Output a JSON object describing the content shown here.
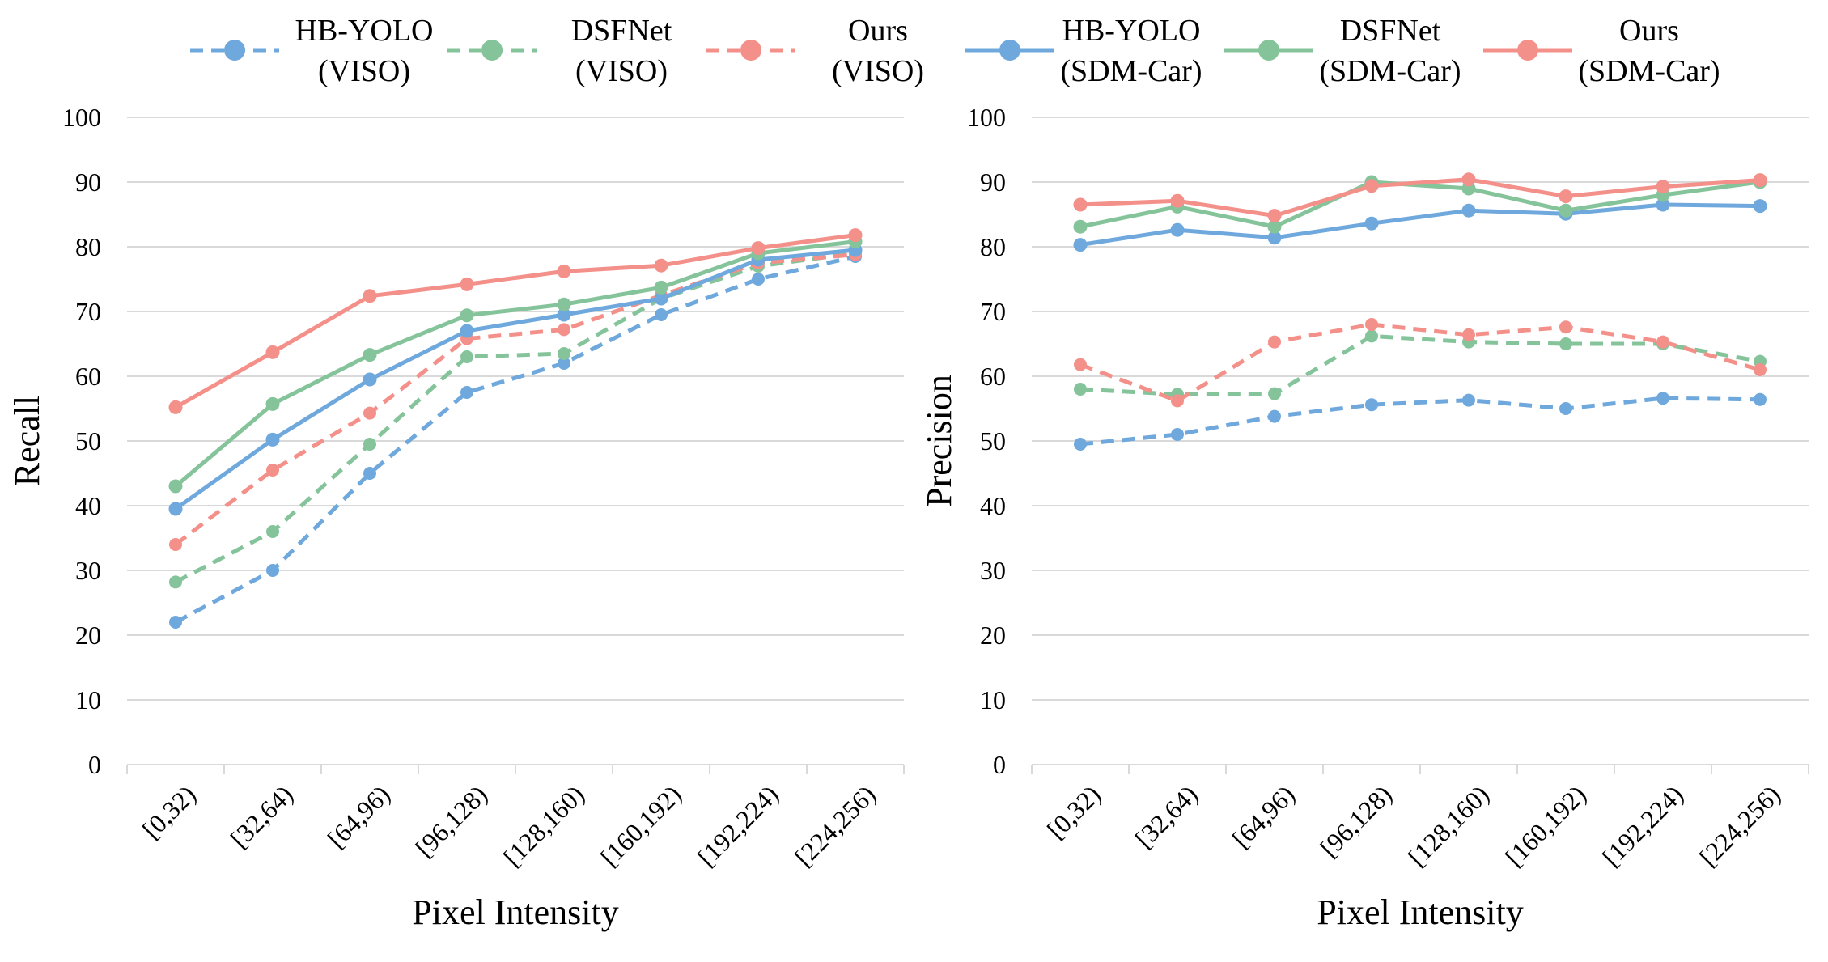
{
  "legend": [
    {
      "line1": "HB-YOLO",
      "line2": "(VISO)",
      "color": "#6fa8dc",
      "dash": true
    },
    {
      "line1": "DSFNet",
      "line2": "(VISO)",
      "color": "#85c49a",
      "dash": true
    },
    {
      "line1": "Ours",
      "line2": "(VISO)",
      "color": "#f4908a",
      "dash": true
    },
    {
      "line1": "HB-YOLO",
      "line2": "(SDM-Car)",
      "color": "#6fa8dc",
      "dash": false
    },
    {
      "line1": "DSFNet",
      "line2": "(SDM-Car)",
      "color": "#85c49a",
      "dash": false
    },
    {
      "line1": "Ours",
      "line2": "(SDM-Car)",
      "color": "#f4908a",
      "dash": false
    }
  ],
  "chart_data": [
    {
      "type": "line",
      "title": "",
      "xlabel": "Pixel Intensity",
      "ylabel": "Recall",
      "ylim": [
        0,
        100
      ],
      "yticks": [
        0,
        10,
        20,
        30,
        40,
        50,
        60,
        70,
        80,
        90,
        100
      ],
      "grid": true,
      "categories": [
        "[0,32)",
        "[32,64)",
        "[64,96)",
        "[96,128)",
        "[128,160)",
        "[160,192)",
        "[192,224)",
        "[224,256)"
      ],
      "series": [
        {
          "name": "HB-YOLO (VISO)",
          "color": "#6fa8dc",
          "dash": true,
          "values": [
            22.0,
            30.0,
            45.0,
            57.5,
            62.0,
            69.5,
            75.0,
            78.5
          ]
        },
        {
          "name": "DSFNet (VISO)",
          "color": "#85c49a",
          "dash": true,
          "values": [
            28.2,
            36.0,
            49.5,
            63.0,
            63.5,
            72.0,
            77.0,
            79.0
          ]
        },
        {
          "name": "Ours (VISO)",
          "color": "#f4908a",
          "dash": true,
          "values": [
            34.0,
            45.5,
            54.3,
            65.8,
            67.2,
            72.5,
            77.5,
            78.8
          ]
        },
        {
          "name": "HB-YOLO (SDM-Car)",
          "color": "#6fa8dc",
          "dash": false,
          "values": [
            39.5,
            50.2,
            59.5,
            67.0,
            69.5,
            72.0,
            78.0,
            79.5
          ]
        },
        {
          "name": "DSFNet (SDM-Car)",
          "color": "#85c49a",
          "dash": false,
          "values": [
            43.0,
            55.7,
            63.3,
            69.4,
            71.1,
            73.7,
            79.0,
            80.8
          ]
        },
        {
          "name": "Ours (SDM-Car)",
          "color": "#f4908a",
          "dash": false,
          "values": [
            55.2,
            63.7,
            72.4,
            74.2,
            76.2,
            77.1,
            79.8,
            81.8
          ]
        }
      ]
    },
    {
      "type": "line",
      "title": "",
      "xlabel": "Pixel Intensity",
      "ylabel": "Precision",
      "ylim": [
        0,
        100
      ],
      "yticks": [
        0,
        10,
        20,
        30,
        40,
        50,
        60,
        70,
        80,
        90,
        100
      ],
      "grid": true,
      "categories": [
        "[0,32)",
        "[32,64)",
        "[64,96)",
        "[96,128)",
        "[128,160)",
        "[160,192)",
        "[192,224)",
        "[224,256)"
      ],
      "series": [
        {
          "name": "HB-YOLO (VISO)",
          "color": "#6fa8dc",
          "dash": true,
          "values": [
            49.5,
            51.0,
            53.8,
            55.6,
            56.3,
            55.0,
            56.6,
            56.4
          ]
        },
        {
          "name": "DSFNet (VISO)",
          "color": "#85c49a",
          "dash": true,
          "values": [
            58.0,
            57.2,
            57.3,
            66.2,
            65.3,
            65.0,
            65.0,
            62.3
          ]
        },
        {
          "name": "Ours (VISO)",
          "color": "#f4908a",
          "dash": true,
          "values": [
            61.8,
            56.2,
            65.3,
            68.0,
            66.4,
            67.6,
            65.3,
            61.0
          ]
        },
        {
          "name": "HB-YOLO (SDM-Car)",
          "color": "#6fa8dc",
          "dash": false,
          "values": [
            80.3,
            82.6,
            81.4,
            83.6,
            85.6,
            85.1,
            86.5,
            86.3
          ]
        },
        {
          "name": "DSFNet (SDM-Car)",
          "color": "#85c49a",
          "dash": false,
          "values": [
            83.1,
            86.2,
            83.1,
            90.0,
            89.0,
            85.6,
            88.0,
            90.0
          ]
        },
        {
          "name": "Ours (SDM-Car)",
          "color": "#f4908a",
          "dash": false,
          "values": [
            86.5,
            87.1,
            84.8,
            89.4,
            90.4,
            87.8,
            89.3,
            90.3
          ]
        }
      ]
    }
  ]
}
